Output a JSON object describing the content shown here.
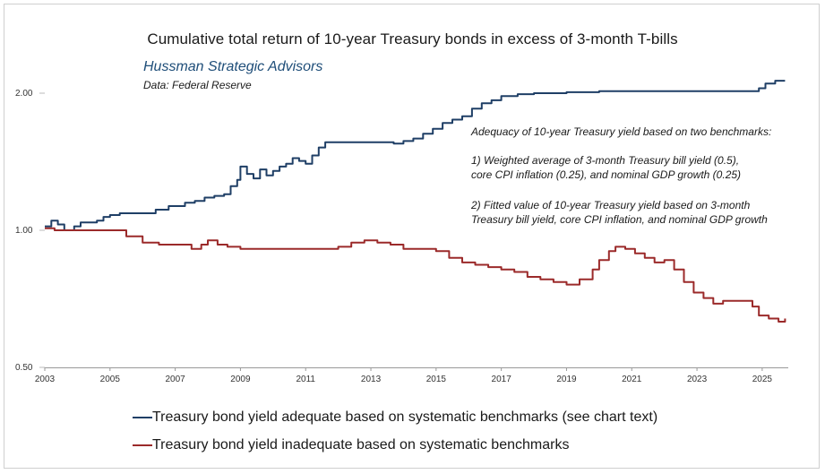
{
  "chart_data": {
    "type": "line",
    "title": "Cumulative total return of 10-year Treasury bonds in excess of 3-month T-bills",
    "brand": "Hussman Strategic Advisors",
    "source": "Data: Federal Reserve",
    "y_scale": "log",
    "ylim": [
      0.5,
      2.2
    ],
    "xlim": [
      2003,
      2025.8
    ],
    "y_ticks": [
      "2.00",
      "1.00",
      "0.50"
    ],
    "x_ticks": [
      "2003",
      "2005",
      "2007",
      "2009",
      "2011",
      "2013",
      "2015",
      "2017",
      "2019",
      "2021",
      "2023",
      "2025"
    ],
    "annotation": [
      "Adequacy of 10-year Treasury yield based on two benchmarks:",
      "1) Weighted average of 3-month Treasury bill yield (0.5),",
      "core CPI inflation (0.25), and nominal GDP growth (0.25)",
      "2) Fitted value of 10-year Treasury yield based on 3-month",
      "Treasury bill yield, core CPI inflation, and nominal GDP growth"
    ],
    "series": [
      {
        "name": "Treasury bond yield adequate based on systematic benchmarks (see chart text)",
        "color": "#1f3f66",
        "x": [
          2003.0,
          2003.2,
          2003.4,
          2003.6,
          2003.9,
          2004.1,
          2004.4,
          2004.6,
          2004.8,
          2005.0,
          2005.3,
          2005.6,
          2006.0,
          2006.4,
          2006.8,
          2007.0,
          2007.3,
          2007.6,
          2007.9,
          2008.2,
          2008.5,
          2008.7,
          2008.9,
          2009.0,
          2009.2,
          2009.4,
          2009.6,
          2009.8,
          2010.0,
          2010.2,
          2010.4,
          2010.6,
          2010.8,
          2011.0,
          2011.2,
          2011.4,
          2011.6,
          2011.9,
          2012.3,
          2012.7,
          2013.0,
          2013.4,
          2013.7,
          2014.0,
          2014.3,
          2014.6,
          2014.9,
          2015.2,
          2015.5,
          2015.8,
          2016.1,
          2016.4,
          2016.7,
          2017.0,
          2017.5,
          2018.0,
          2018.5,
          2019.0,
          2019.5,
          2020.0,
          2020.4,
          2020.8,
          2021.5,
          2022.5,
          2023.5,
          2024.3,
          2024.7,
          2024.9,
          2025.1,
          2025.4,
          2025.7
        ],
        "values": [
          1.02,
          1.05,
          1.03,
          1.0,
          1.02,
          1.04,
          1.04,
          1.05,
          1.07,
          1.08,
          1.09,
          1.09,
          1.09,
          1.11,
          1.13,
          1.13,
          1.15,
          1.16,
          1.18,
          1.19,
          1.2,
          1.25,
          1.29,
          1.38,
          1.33,
          1.3,
          1.36,
          1.32,
          1.35,
          1.38,
          1.4,
          1.44,
          1.42,
          1.4,
          1.46,
          1.52,
          1.56,
          1.56,
          1.56,
          1.56,
          1.56,
          1.56,
          1.55,
          1.57,
          1.59,
          1.63,
          1.67,
          1.72,
          1.75,
          1.78,
          1.85,
          1.9,
          1.93,
          1.97,
          1.99,
          2.0,
          2.0,
          2.01,
          2.01,
          2.02,
          2.02,
          2.02,
          2.02,
          2.02,
          2.02,
          2.02,
          2.02,
          2.05,
          2.1,
          2.13,
          2.13
        ]
      },
      {
        "name": "Treasury bond yield inadequate based on systematic benchmarks",
        "color": "#9b2a2a",
        "x": [
          2003.0,
          2003.3,
          2003.6,
          2004.0,
          2004.5,
          2005.0,
          2005.5,
          2006.0,
          2006.5,
          2007.0,
          2007.5,
          2007.8,
          2008.0,
          2008.3,
          2008.6,
          2009.0,
          2009.5,
          2010.0,
          2010.5,
          2011.0,
          2011.5,
          2012.0,
          2012.4,
          2012.8,
          2013.2,
          2013.6,
          2014.0,
          2014.5,
          2015.0,
          2015.4,
          2015.8,
          2016.2,
          2016.6,
          2017.0,
          2017.4,
          2017.8,
          2018.2,
          2018.6,
          2019.0,
          2019.4,
          2019.8,
          2020.0,
          2020.3,
          2020.5,
          2020.8,
          2021.1,
          2021.4,
          2021.7,
          2022.0,
          2022.3,
          2022.6,
          2022.9,
          2023.2,
          2023.5,
          2023.8,
          2024.1,
          2024.4,
          2024.7,
          2024.9,
          2025.2,
          2025.5,
          2025.7
        ],
        "values": [
          1.01,
          1.0,
          1.0,
          1.0,
          1.0,
          1.0,
          0.97,
          0.94,
          0.93,
          0.93,
          0.91,
          0.93,
          0.95,
          0.93,
          0.92,
          0.91,
          0.91,
          0.91,
          0.91,
          0.91,
          0.91,
          0.92,
          0.94,
          0.95,
          0.94,
          0.93,
          0.91,
          0.91,
          0.9,
          0.87,
          0.85,
          0.84,
          0.83,
          0.82,
          0.81,
          0.79,
          0.78,
          0.77,
          0.76,
          0.78,
          0.82,
          0.86,
          0.9,
          0.92,
          0.91,
          0.89,
          0.87,
          0.85,
          0.86,
          0.82,
          0.77,
          0.73,
          0.71,
          0.69,
          0.7,
          0.7,
          0.7,
          0.68,
          0.65,
          0.64,
          0.63,
          0.64
        ]
      }
    ]
  }
}
